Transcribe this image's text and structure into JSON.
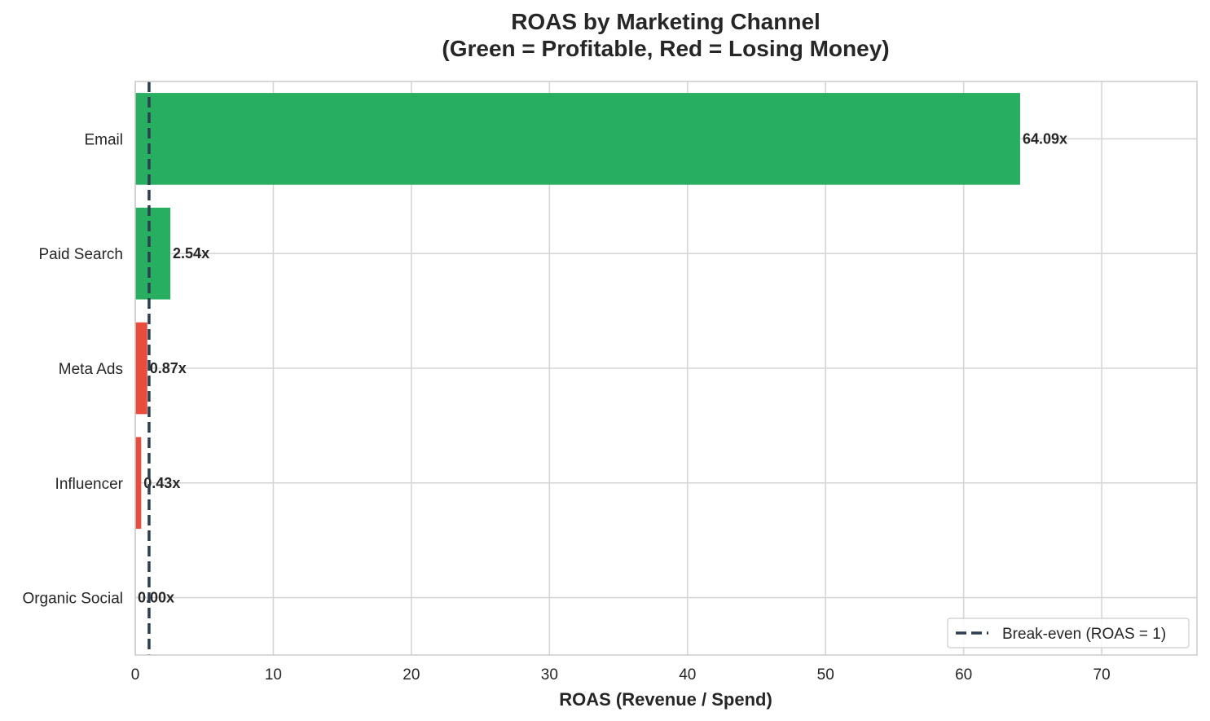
{
  "chart_data": {
    "type": "bar",
    "orientation": "horizontal",
    "title_line1": "ROAS by Marketing Channel",
    "title_line2": "(Green = Profitable, Red = Losing Money)",
    "xlabel": "ROAS (Revenue / Spend)",
    "ylabel": "",
    "categories": [
      "Email",
      "Paid Search",
      "Meta Ads",
      "Influencer",
      "Organic Social"
    ],
    "values": [
      64.09,
      2.54,
      0.87,
      0.43,
      0.0
    ],
    "data_labels": [
      "64.09x",
      "2.54x",
      "0.87x",
      "0.43x",
      "0.00x"
    ],
    "x_ticks": [
      0,
      10,
      20,
      30,
      40,
      50,
      60,
      70
    ],
    "xlim": [
      0,
      76.9
    ],
    "grid": true,
    "reference_line": {
      "value": 1,
      "style": "dashed",
      "color": "#2c3e50",
      "label": "Break-even (ROAS = 1)"
    },
    "legend": {
      "placement": "lower-right",
      "entries": [
        "Break-even (ROAS = 1)"
      ]
    },
    "colors": {
      "profitable": "#27ae60",
      "losing": "#e74c3c",
      "grid": "#d6d6d6",
      "axes_edge": "#cccccc",
      "text": "#262626"
    }
  }
}
